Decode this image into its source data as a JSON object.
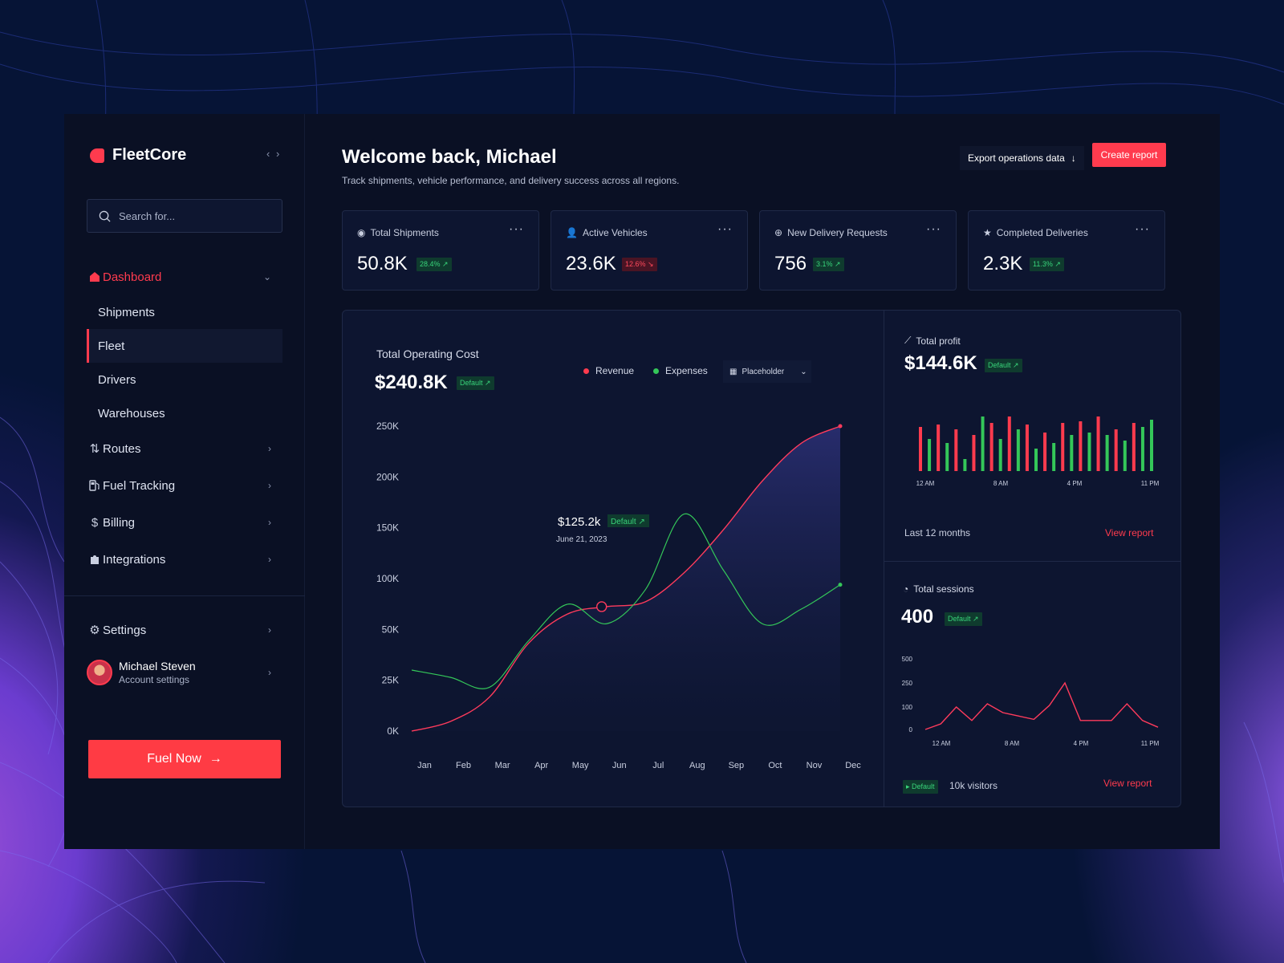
{
  "brand": {
    "name": "FleetCore"
  },
  "search": {
    "placeholder": "Search for..."
  },
  "sidebar": {
    "dashboard": "Dashboard",
    "sub_items": [
      "Shipments",
      "Fleet",
      "Drivers",
      "Warehouses"
    ],
    "items": [
      "Routes",
      "Fuel Tracking",
      "Billing",
      "Integrations"
    ],
    "settings": "Settings",
    "user": {
      "name": "Michael Steven",
      "sub": "Account settings"
    },
    "cta": "Fuel Now"
  },
  "header": {
    "title": "Welcome back, Michael",
    "subtitle": "Track shipments, vehicle performance, and delivery success across all regions.",
    "export_label": "Export operations data",
    "create_label": "Create report"
  },
  "kpis": [
    {
      "label": "Total Shipments",
      "value": "50.8K",
      "change": "28.4%",
      "trend": "up",
      "icon": "eye-icon"
    },
    {
      "label": "Active Vehicles",
      "value": "23.6K",
      "change": "12.6%",
      "trend": "down",
      "icon": "user-icon"
    },
    {
      "label": "New Delivery Requests",
      "value": "756",
      "change": "3.1%",
      "trend": "up",
      "icon": "plus-circle-icon"
    },
    {
      "label": "Completed Deliveries",
      "value": "2.3K",
      "change": "11.3%",
      "trend": "up",
      "icon": "star-icon"
    }
  ],
  "colors": {
    "accent": "#ff3b4e",
    "revenue": "#ff3b4e",
    "expenses": "#34c759"
  },
  "chart_data": [
    {
      "type": "line",
      "title": "Total Operating Cost",
      "value": "$240.8K",
      "badge": "Default",
      "legend": [
        "Revenue",
        "Expenses"
      ],
      "select_label": "Placeholder",
      "categories": [
        "Jan",
        "Feb",
        "Mar",
        "Apr",
        "May",
        "Jun",
        "Jul",
        "Aug",
        "Sep",
        "Oct",
        "Nov",
        "Dec"
      ],
      "y_ticks": [
        "250K",
        "200K",
        "150K",
        "100K",
        "50K",
        "25K",
        "0K"
      ],
      "series": [
        {
          "name": "Revenue",
          "values": [
            0,
            8,
            28,
            72,
            96,
            102,
            106,
            130,
            165,
            205,
            236,
            250
          ]
        },
        {
          "name": "Expenses",
          "values": [
            50,
            44,
            36,
            74,
            104,
            88,
            116,
            178,
            132,
            88,
            100,
            120
          ]
        }
      ],
      "tooltip": {
        "value": "$125.2k",
        "badge": "Default",
        "date": "June 21, 2023"
      }
    },
    {
      "type": "bar",
      "title": "Total profit",
      "value": "$144.6K",
      "badge": "Default",
      "x_ticks": [
        "12 AM",
        "8 AM",
        "4 PM",
        "11 PM"
      ],
      "values": [
        55,
        40,
        58,
        35,
        52,
        15,
        45,
        68,
        60,
        40,
        68,
        52,
        58,
        28,
        48,
        35,
        60,
        45,
        62,
        48,
        68,
        45,
        52,
        38,
        60,
        55,
        64
      ],
      "colors": [
        "r",
        "g",
        "r",
        "g",
        "r",
        "g",
        "r",
        "g",
        "r",
        "g",
        "r",
        "g",
        "r",
        "g",
        "r",
        "g",
        "r",
        "g",
        "r",
        "g",
        "r",
        "g",
        "r",
        "g",
        "r",
        "g",
        "g"
      ],
      "footer": "Last 12 months",
      "link": "View report"
    },
    {
      "type": "line",
      "title": "Total sessions",
      "value": "400",
      "badge": "Default",
      "y_ticks": [
        "500",
        "250",
        "100",
        "0"
      ],
      "x_ticks": [
        "12 AM",
        "8 AM",
        "4 PM",
        "11 PM"
      ],
      "values": [
        0,
        25,
        100,
        40,
        120,
        75,
        60,
        45,
        110,
        250,
        40,
        40,
        40,
        120,
        40,
        10
      ],
      "footer_badge": "Default",
      "footer": "10k visitors",
      "link": "View report"
    }
  ]
}
